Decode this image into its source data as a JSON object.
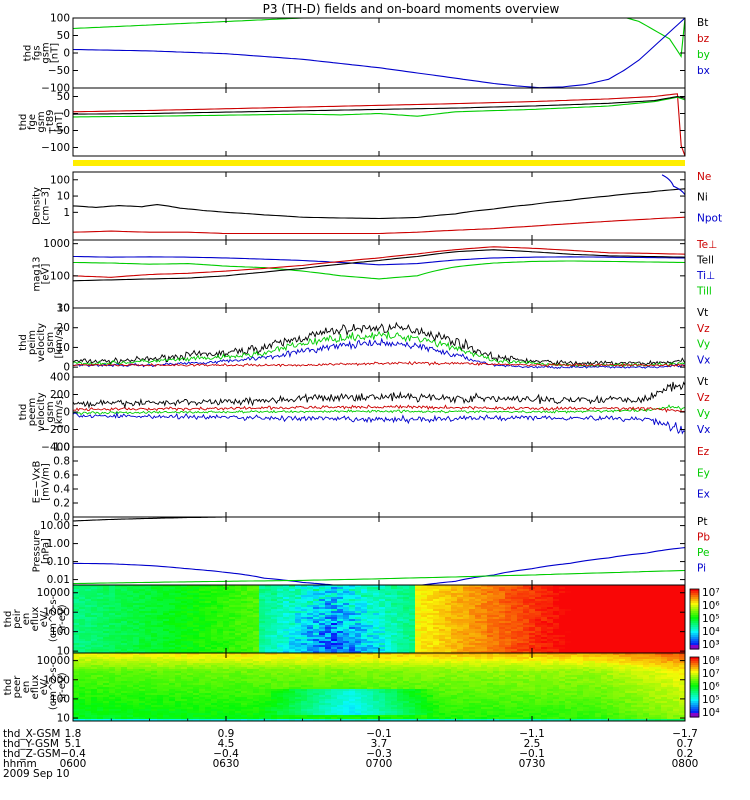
{
  "title": "P3 (TH-D) fields and on-board moments overview",
  "date_label": "2009 Sep 10",
  "colors": {
    "black": "#000000",
    "red": "#cc0000",
    "green": "#00cc00",
    "blue": "#0000cc",
    "yellow": "#ffee00"
  },
  "chart_data": [
    {
      "type": "line",
      "ylabel": [
        "thd",
        "fgs",
        "gsm",
        "[nT]"
      ],
      "ylim": [
        -100,
        100
      ],
      "yticks": [
        "100",
        "50",
        "0",
        "−50",
        "−100"
      ],
      "legend": [
        {
          "name": "Bt",
          "color": "#000000"
        },
        {
          "name": "bz",
          "color": "#cc0000"
        },
        {
          "name": "by",
          "color": "#00cc00"
        },
        {
          "name": "bx",
          "color": "#0000cc"
        }
      ],
      "series": [
        {
          "name": "by",
          "color": "#00cc00",
          "t": [
            0,
            8,
            16,
            24,
            32,
            40,
            48,
            56,
            62,
            66,
            70,
            74,
            78,
            79.5,
            80,
            80.5
          ],
          "v": [
            70,
            78,
            86,
            94,
            102,
            112,
            122,
            132,
            138,
            130,
            115,
            90,
            40,
            -10,
            100,
            100
          ]
        },
        {
          "name": "bx",
          "color": "#0000cc",
          "t": [
            0,
            10,
            20,
            30,
            40,
            50,
            55,
            58,
            61,
            64,
            67,
            70,
            72,
            74,
            76,
            78,
            80
          ],
          "v": [
            10,
            6,
            -2,
            -18,
            -42,
            -72,
            -87,
            -94,
            -99,
            -97,
            -90,
            -75,
            -50,
            -20,
            20,
            60,
            100
          ]
        }
      ]
    },
    {
      "type": "line",
      "ylabel": [
        "thd",
        "fge",
        "gsm",
        "−t89",
        "[nT]"
      ],
      "ylim": [
        -125,
        75
      ],
      "yticks": [
        "50",
        "0",
        "−50",
        "−100"
      ],
      "series": [
        {
          "name": "bz",
          "color": "#cc0000",
          "t": [
            0,
            10,
            20,
            30,
            40,
            50,
            60,
            70,
            76,
            79,
            79.6,
            80
          ],
          "v": [
            5,
            9,
            14,
            19,
            24,
            29,
            35,
            43,
            50,
            58,
            -125,
            -125
          ]
        },
        {
          "name": "by",
          "color": "#00cc00",
          "t": [
            0,
            10,
            20,
            30,
            35,
            40,
            45,
            50,
            60,
            70,
            76,
            79,
            80
          ],
          "v": [
            -10,
            -8,
            -5,
            -2,
            -4,
            0,
            -8,
            5,
            12,
            22,
            35,
            48,
            40
          ]
        },
        {
          "name": "Bt",
          "color": "#000000",
          "t": [
            0,
            10,
            20,
            30,
            40,
            50,
            60,
            70,
            76,
            79,
            80
          ],
          "v": [
            -2,
            0,
            4,
            8,
            12,
            16,
            22,
            30,
            38,
            50,
            45
          ]
        }
      ]
    },
    {
      "type": "line",
      "ylabel": [
        "Density",
        "[cm−3]"
      ],
      "log": true,
      "ylim": [
        0.02,
        300
      ],
      "yticks": [
        "100",
        "10",
        "1"
      ],
      "legend": [
        {
          "name": "Ne",
          "color": "#cc0000"
        },
        {
          "name": "Ni",
          "color": "#000000"
        },
        {
          "name": "Npot",
          "color": "#0000cc"
        }
      ],
      "series": [
        {
          "name": "Ni",
          "color": "#000000",
          "t": [
            0,
            3,
            6,
            9,
            11,
            14,
            17,
            20,
            25,
            30,
            35,
            40,
            45,
            50,
            55,
            60,
            65,
            70,
            75,
            80
          ],
          "v": [
            2.5,
            2,
            2.6,
            2.2,
            3,
            1.8,
            1.3,
            1,
            0.7,
            0.5,
            0.45,
            0.42,
            0.48,
            0.8,
            1.6,
            3,
            5.5,
            10,
            17,
            28
          ]
        },
        {
          "name": "Ne",
          "color": "#cc0000",
          "t": [
            0,
            5,
            10,
            15,
            20,
            25,
            30,
            35,
            40,
            45,
            50,
            55,
            60,
            65,
            70,
            75,
            80
          ],
          "v": [
            0.06,
            0.07,
            0.06,
            0.06,
            0.05,
            0.05,
            0.05,
            0.05,
            0.05,
            0.06,
            0.08,
            0.1,
            0.14,
            0.2,
            0.28,
            0.38,
            0.5
          ]
        },
        {
          "name": "Npot",
          "color": "#0000cc",
          "t": [
            77,
            78.5,
            80
          ],
          "v": [
            200,
            40,
            12
          ]
        }
      ]
    },
    {
      "type": "line",
      "ylabel": [
        "mag13",
        "[eV]"
      ],
      "log": true,
      "ylim": [
        10,
        1300
      ],
      "yticks": [
        "1000",
        "100",
        "10"
      ],
      "legend": [
        {
          "name": "Te⊥",
          "color": "#cc0000"
        },
        {
          "name": "Tell",
          "color": "#000000"
        },
        {
          "name": "Ti⊥",
          "color": "#0000cc"
        },
        {
          "name": "Till",
          "color": "#00cc00"
        }
      ],
      "series": [
        {
          "name": "Ti⊥",
          "color": "#0000cc",
          "t": [
            0,
            5,
            10,
            15,
            20,
            25,
            30,
            35,
            40,
            45,
            50,
            55,
            60,
            65,
            70,
            75,
            80
          ],
          "v": [
            400,
            380,
            390,
            380,
            360,
            330,
            300,
            260,
            220,
            240,
            310,
            360,
            380,
            390,
            380,
            370,
            360
          ]
        },
        {
          "name": "Till",
          "color": "#00cc00",
          "t": [
            0,
            5,
            10,
            15,
            20,
            25,
            30,
            35,
            40,
            45,
            50,
            55,
            60,
            65,
            70,
            75,
            80
          ],
          "v": [
            260,
            250,
            230,
            240,
            200,
            180,
            140,
            100,
            80,
            100,
            190,
            250,
            280,
            290,
            280,
            270,
            260
          ]
        },
        {
          "name": "Te⊥",
          "color": "#cc0000",
          "t": [
            0,
            5,
            10,
            15,
            20,
            25,
            30,
            35,
            40,
            45,
            50,
            55,
            60,
            65,
            70,
            75,
            80
          ],
          "v": [
            100,
            90,
            110,
            120,
            140,
            170,
            210,
            280,
            360,
            480,
            650,
            800,
            720,
            620,
            520,
            500,
            470
          ]
        },
        {
          "name": "Tell",
          "color": "#000000",
          "t": [
            0,
            5,
            10,
            15,
            20,
            25,
            30,
            35,
            40,
            45,
            50,
            55,
            60,
            65,
            70,
            75,
            80
          ],
          "v": [
            70,
            75,
            80,
            85,
            100,
            130,
            170,
            230,
            300,
            400,
            560,
            650,
            560,
            470,
            420,
            400,
            380
          ]
        }
      ]
    },
    {
      "type": "line",
      "ylabel": [
        "thd",
        "peim",
        "velocity",
        "gsm",
        "[km/s]"
      ],
      "ylim": [
        -5,
        30
      ],
      "yticks": [
        "30",
        "20",
        "10",
        "0"
      ],
      "legend": [
        {
          "name": "Vt",
          "color": "#000000"
        },
        {
          "name": "Vz",
          "color": "#cc0000"
        },
        {
          "name": "Vy",
          "color": "#00cc00"
        },
        {
          "name": "Vx",
          "color": "#0000cc"
        }
      ],
      "series": [
        {
          "name": "Vt",
          "color": "#000000",
          "noise": 2.5,
          "t": [
            0,
            5,
            10,
            15,
            20,
            25,
            30,
            35,
            40,
            45,
            50,
            55,
            60,
            65,
            70,
            75,
            80
          ],
          "v": [
            3,
            3,
            4,
            6,
            7,
            10,
            15,
            19,
            20,
            19,
            13,
            5,
            3,
            2,
            2,
            2,
            3
          ]
        },
        {
          "name": "Vy",
          "color": "#00cc00",
          "noise": 2,
          "t": [
            0,
            5,
            10,
            15,
            20,
            25,
            30,
            35,
            40,
            45,
            50,
            55,
            60,
            65,
            70,
            75,
            80
          ],
          "v": [
            2,
            2,
            3,
            4,
            5,
            7,
            12,
            15,
            16,
            15,
            10,
            3,
            2,
            1,
            1,
            1,
            2
          ]
        },
        {
          "name": "Vx",
          "color": "#0000cc",
          "noise": 1.8,
          "t": [
            0,
            5,
            10,
            15,
            20,
            25,
            30,
            35,
            40,
            45,
            50,
            55,
            60,
            65,
            70,
            75,
            80
          ],
          "v": [
            1,
            1,
            1,
            2,
            3,
            5,
            8,
            11,
            12,
            11,
            6,
            1,
            0,
            0,
            0,
            0,
            1
          ]
        },
        {
          "name": "Vz",
          "color": "#cc0000",
          "noise": 1.5,
          "t": [
            0,
            10,
            20,
            30,
            40,
            50,
            60,
            70,
            80
          ],
          "v": [
            1,
            1,
            1,
            1,
            2,
            2,
            1,
            1,
            1
          ]
        }
      ]
    },
    {
      "type": "line",
      "ylabel": [
        "thd",
        "peem",
        "velocity",
        "gsm",
        "[km/s]"
      ],
      "ylim": [
        -400,
        400
      ],
      "yticks": [
        "400",
        "200",
        "0",
        "−200",
        "−400"
      ],
      "legend": [
        {
          "name": "Vt",
          "color": "#000000"
        },
        {
          "name": "Vz",
          "color": "#cc0000"
        },
        {
          "name": "Vy",
          "color": "#00cc00"
        },
        {
          "name": "Vx",
          "color": "#0000cc"
        }
      ],
      "series": [
        {
          "name": "Vy",
          "color": "#00cc00",
          "noise": 40,
          "t": [
            0,
            20,
            40,
            60,
            75,
            78,
            80
          ],
          "v": [
            -10,
            0,
            10,
            0,
            20,
            60,
            40
          ]
        },
        {
          "name": "Vx",
          "color": "#0000cc",
          "noise": 60,
          "t": [
            0,
            20,
            40,
            60,
            75,
            78,
            80
          ],
          "v": [
            -40,
            -60,
            -90,
            -60,
            -80,
            -150,
            -220
          ]
        },
        {
          "name": "Vz",
          "color": "#cc0000",
          "noise": 40,
          "t": [
            0,
            20,
            40,
            60,
            75,
            78,
            80
          ],
          "v": [
            30,
            40,
            60,
            40,
            40,
            20,
            10
          ]
        },
        {
          "name": "Vt",
          "color": "#000000",
          "noise": 60,
          "t": [
            0,
            20,
            40,
            60,
            75,
            78,
            80
          ],
          "v": [
            90,
            120,
            180,
            140,
            150,
            300,
            280
          ]
        }
      ]
    },
    {
      "type": "line",
      "ylabel": [
        "E=−VxB",
        "[mV/m]"
      ],
      "ylim": [
        0,
        1
      ],
      "yticks": [
        "1.0",
        "0.8",
        "0.6",
        "0.4",
        "0.2",
        "0.0"
      ],
      "legend": [
        {
          "name": "Ez",
          "color": "#cc0000"
        },
        {
          "name": "Ey",
          "color": "#00cc00"
        },
        {
          "name": "Ex",
          "color": "#0000cc"
        }
      ],
      "series": []
    },
    {
      "type": "line",
      "ylabel": [
        "Pressure",
        "[nPa]"
      ],
      "log": true,
      "ylim": [
        0.005,
        30
      ],
      "yticks": [
        "10.00",
        "1.00",
        "0.10",
        "0.01"
      ],
      "legend": [
        {
          "name": "Pt",
          "color": "#000000"
        },
        {
          "name": "Pb",
          "color": "#cc0000"
        },
        {
          "name": "Pe",
          "color": "#00cc00"
        },
        {
          "name": "Pi",
          "color": "#0000cc"
        }
      ],
      "series": [
        {
          "name": "Pt",
          "color": "#000000",
          "t": [
            0,
            5,
            10,
            15,
            20,
            23
          ],
          "v": [
            18,
            22,
            25,
            28,
            30,
            32
          ]
        },
        {
          "name": "Pi",
          "color": "#0000cc",
          "t": [
            0,
            5,
            10,
            15,
            20,
            25,
            30,
            35,
            40,
            45,
            50,
            55,
            60,
            65,
            70,
            75,
            80
          ],
          "v": [
            0.08,
            0.075,
            0.06,
            0.04,
            0.025,
            0.012,
            0.007,
            0.0045,
            0.004,
            0.0045,
            0.008,
            0.018,
            0.04,
            0.08,
            0.16,
            0.3,
            0.6
          ]
        },
        {
          "name": "Pe",
          "color": "#00cc00",
          "t": [
            0,
            10,
            20,
            30,
            40,
            50,
            60,
            70,
            80
          ],
          "v": [
            0.006,
            0.007,
            0.008,
            0.009,
            0.011,
            0.014,
            0.018,
            0.024,
            0.032
          ]
        }
      ]
    },
    {
      "type": "heatmap",
      "ylabel": [
        "thd",
        "peir",
        "en",
        "eflux",
        "eV/",
        "(cm^2-s-",
        "sr-eV)"
      ],
      "log": true,
      "ylim": [
        8,
        25000
      ],
      "yticks": [
        "10000",
        "1000",
        "100",
        "10"
      ],
      "colorbar": {
        "ticks": [
          "10⁷",
          "10⁶",
          "10⁵",
          "10⁴",
          "10³"
        ]
      }
    },
    {
      "type": "heatmap",
      "ylabel": [
        "thd",
        "peer",
        "en",
        "eflux",
        "eV/",
        "(cm^2-s-",
        "sr-eV)"
      ],
      "log": true,
      "ylim": [
        7,
        25000
      ],
      "yticks": [
        "10000",
        "1000",
        "100",
        "10"
      ],
      "colorbar": {
        "ticks": [
          "10⁸",
          "10⁷",
          "10⁶",
          "10⁵",
          "10⁴"
        ]
      }
    }
  ],
  "x_axis": {
    "hhmm": [
      "0600",
      "0630",
      "0700",
      "0730",
      "0800"
    ],
    "rows": [
      {
        "label": "thd_X-GSM",
        "values": [
          "1.8",
          "0.9",
          "−0.1",
          "−1.1",
          "−1.7"
        ]
      },
      {
        "label": "thd_Y-GSM",
        "values": [
          "5.1",
          "4.5",
          "3.7",
          "2.5",
          "0.7"
        ]
      },
      {
        "label": "thd_Z-GSM",
        "values": [
          "−0.4",
          "−0.4",
          "−0.3",
          "−0.1",
          "0.2"
        ]
      },
      {
        "label": "hhmm",
        "values": [
          "0600",
          "0630",
          "0700",
          "0730",
          "0800"
        ]
      }
    ]
  }
}
